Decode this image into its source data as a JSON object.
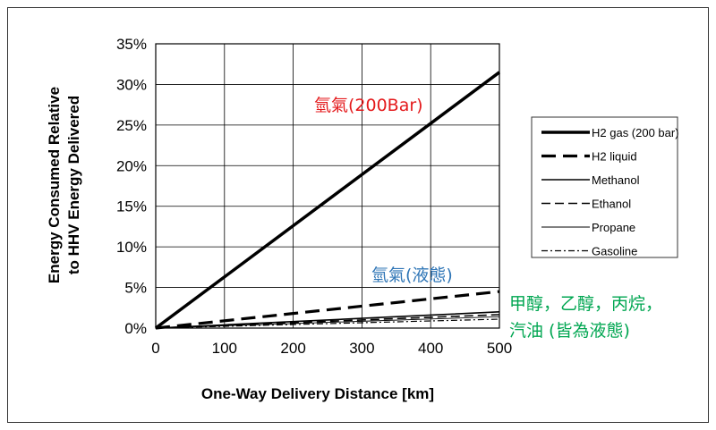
{
  "chart_data": {
    "type": "line",
    "title": "",
    "xlabel": "One-Way Delivery Distance [km]",
    "ylabel": "Energy Consumed Relative to HHV Energy Delivered",
    "ylabel_lines": [
      "Energy Consumed Relative",
      "to HHV Energy Delivered"
    ],
    "xlim": [
      0,
      500
    ],
    "ylim": [
      0,
      35
    ],
    "x_ticks": [
      "0",
      "100",
      "200",
      "300",
      "400",
      "500"
    ],
    "y_ticks": [
      "0%",
      "5%",
      "10%",
      "15%",
      "20%",
      "25%",
      "30%",
      "35%"
    ],
    "grid": true,
    "legend_position": "right",
    "x": [
      0,
      100,
      200,
      300,
      400,
      500
    ],
    "series": [
      {
        "name": "H2 gas (200 bar)",
        "style": "thick-solid",
        "values": [
          0,
          6.3,
          12.6,
          18.9,
          25.2,
          31.5
        ]
      },
      {
        "name": "H2 liquid",
        "style": "thick-dash",
        "values": [
          0,
          0.9,
          1.8,
          2.7,
          3.6,
          4.5
        ]
      },
      {
        "name": "Methanol",
        "style": "solid",
        "values": [
          0,
          0.4,
          0.8,
          1.2,
          1.6,
          2.0
        ]
      },
      {
        "name": "Ethanol",
        "style": "dash",
        "values": [
          0,
          0.33,
          0.66,
          1.0,
          1.33,
          1.65
        ]
      },
      {
        "name": "Propane",
        "style": "thin-solid",
        "values": [
          0,
          0.28,
          0.56,
          0.84,
          1.12,
          1.4
        ]
      },
      {
        "name": "Gasoline",
        "style": "dash-dot",
        "values": [
          0,
          0.22,
          0.44,
          0.66,
          0.88,
          1.1
        ]
      }
    ],
    "annotations": [
      {
        "text": "氫氣(200Bar)",
        "color": "#e41a1c"
      },
      {
        "text": "氫氣(液態)",
        "color": "#2e75b6"
      },
      {
        "text": "甲醇，乙醇，丙烷，",
        "color": "#00a651"
      },
      {
        "text": "汽油 (皆為液態)",
        "color": "#00a651"
      }
    ]
  }
}
